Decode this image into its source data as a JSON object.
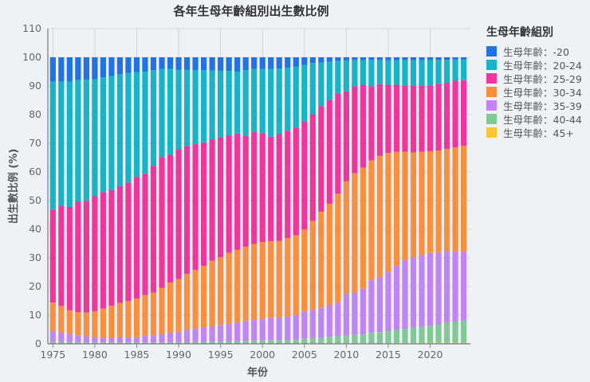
{
  "chart_data": {
    "type": "bar",
    "stacked": true,
    "title": "各年生母年齡組別出生數比例",
    "xlabel": "年份",
    "ylabel": "出生數比例 (%)",
    "ylim": [
      0,
      110
    ],
    "yticks": [
      0,
      10,
      20,
      30,
      40,
      50,
      60,
      70,
      80,
      90,
      100,
      110
    ],
    "xticks": [
      1975,
      1980,
      1985,
      1990,
      1995,
      2000,
      2005,
      2010,
      2015,
      2020
    ],
    "grid": true,
    "legend_title": "生母年齡組別",
    "legend_position": "right",
    "categories": [
      1975,
      1976,
      1977,
      1978,
      1979,
      1980,
      1981,
      1982,
      1983,
      1984,
      1985,
      1986,
      1987,
      1988,
      1989,
      1990,
      1991,
      1992,
      1993,
      1994,
      1995,
      1996,
      1997,
      1998,
      1999,
      2000,
      2001,
      2002,
      2003,
      2004,
      2005,
      2006,
      2007,
      2008,
      2009,
      2010,
      2011,
      2012,
      2013,
      2014,
      2015,
      2016,
      2017,
      2018,
      2019,
      2020,
      2021,
      2022,
      2023,
      2024
    ],
    "series": [
      {
        "name": "生母年齡：45+",
        "color": "#fcc534",
        "values": [
          0.1,
          0.1,
          0.1,
          0.1,
          0.1,
          0.1,
          0.1,
          0.1,
          0.1,
          0.1,
          0.1,
          0.1,
          0.1,
          0.1,
          0.1,
          0.1,
          0.1,
          0.1,
          0.1,
          0.1,
          0.1,
          0.1,
          0.1,
          0.1,
          0.1,
          0.1,
          0.1,
          0.1,
          0.1,
          0.1,
          0.1,
          0.2,
          0.2,
          0.2,
          0.2,
          0.2,
          0.2,
          0.2,
          0.2,
          0.2,
          0.3,
          0.3,
          0.3,
          0.3,
          0.3,
          0.4,
          0.4,
          0.4,
          0.4,
          0.4
        ]
      },
      {
        "name": "生母年齡：40-44",
        "color": "#80c994",
        "values": [
          0.7,
          0.6,
          0.5,
          0.5,
          0.4,
          0.4,
          0.4,
          0.4,
          0.4,
          0.4,
          0.4,
          0.4,
          0.4,
          0.4,
          0.5,
          0.5,
          0.5,
          0.6,
          0.6,
          0.7,
          0.7,
          0.8,
          0.8,
          0.9,
          1.0,
          1.1,
          1.1,
          1.1,
          1.2,
          1.4,
          1.6,
          1.8,
          1.9,
          2.2,
          2.4,
          2.7,
          2.9,
          3.1,
          3.6,
          3.9,
          4.1,
          4.6,
          4.9,
          5.4,
          5.6,
          5.9,
          6.4,
          7.1,
          7.4,
          7.6
        ]
      },
      {
        "name": "生母年齡：35-39",
        "color": "#c184f7",
        "values": [
          3.6,
          3.2,
          2.9,
          2.4,
          2.1,
          1.8,
          1.6,
          1.6,
          1.8,
          1.8,
          1.8,
          2.4,
          2.5,
          2.8,
          3.3,
          3.5,
          4.3,
          4.5,
          5.0,
          5.3,
          5.8,
          6.1,
          6.6,
          7.0,
          7.2,
          7.5,
          7.9,
          7.9,
          8.3,
          8.6,
          9.5,
          9.9,
          10.5,
          11.1,
          11.8,
          14.5,
          14.8,
          15.9,
          18.4,
          19.1,
          20.6,
          22.4,
          24.0,
          24.4,
          25.1,
          25.4,
          25.0,
          24.9,
          24.4,
          24.2
        ]
      },
      {
        "name": "生母年齡：30-34",
        "color": "#fb8f3d",
        "values": [
          10.0,
          9.3,
          8.2,
          8.0,
          8.3,
          9.1,
          10.2,
          11.2,
          12.0,
          12.6,
          13.5,
          14.1,
          14.9,
          16.2,
          17.5,
          18.5,
          19.5,
          20.6,
          21.5,
          22.9,
          23.6,
          24.8,
          25.3,
          25.9,
          26.5,
          26.8,
          26.7,
          26.8,
          27.3,
          27.8,
          28.7,
          31.0,
          33.5,
          35.4,
          38.0,
          39.3,
          41.6,
          42.3,
          41.8,
          42.4,
          41.6,
          39.7,
          37.8,
          36.7,
          36.0,
          35.5,
          35.7,
          35.6,
          36.4,
          36.9
        ]
      },
      {
        "name": "生母年齡：25-29",
        "color": "#f2359c",
        "values": [
          32.3,
          35.0,
          36.1,
          38.6,
          39.0,
          40.1,
          40.6,
          40.3,
          40.7,
          41.4,
          42.4,
          42.4,
          44.2,
          45.7,
          44.6,
          45.3,
          44.7,
          43.9,
          43.0,
          42.4,
          41.9,
          41.0,
          40.6,
          38.7,
          39.2,
          38.0,
          36.5,
          37.3,
          37.5,
          37.6,
          37.7,
          37.1,
          36.9,
          36.2,
          35.0,
          31.4,
          30.4,
          28.9,
          25.9,
          25.0,
          23.8,
          23.4,
          23.1,
          23.3,
          23.1,
          22.9,
          23.3,
          23.1,
          23.2,
          22.9
        ]
      },
      {
        "name": "生母年齡：20-24",
        "color": "#17b3c9",
        "values": [
          44.8,
          43.3,
          43.7,
          42.4,
          42.3,
          40.8,
          40.1,
          39.9,
          39.1,
          38.2,
          36.6,
          35.6,
          33.4,
          30.7,
          29.9,
          27.8,
          26.6,
          25.8,
          25.3,
          24.0,
          23.2,
          22.4,
          21.6,
          22.9,
          21.9,
          22.4,
          23.6,
          22.9,
          22.0,
          21.2,
          19.7,
          18.0,
          15.2,
          13.4,
          11.3,
          10.8,
          9.1,
          8.6,
          9.2,
          8.4,
          8.6,
          8.6,
          8.9,
          8.9,
          8.9,
          8.9,
          8.2,
          8.0,
          7.4,
          7.2
        ]
      },
      {
        "name": "生母年齡：-20",
        "color": "#2271e6",
        "values": [
          8.5,
          8.5,
          8.5,
          8.0,
          7.8,
          7.7,
          7.0,
          6.5,
          5.9,
          5.5,
          5.2,
          5.0,
          4.5,
          4.1,
          4.1,
          4.3,
          4.3,
          4.5,
          4.5,
          4.6,
          4.7,
          4.8,
          5.0,
          4.5,
          4.1,
          4.1,
          4.1,
          3.9,
          3.6,
          3.3,
          2.7,
          2.0,
          1.8,
          1.5,
          1.3,
          1.1,
          1.0,
          1.0,
          0.9,
          1.0,
          1.0,
          1.0,
          1.0,
          1.0,
          1.0,
          1.0,
          1.0,
          0.9,
          0.8,
          0.8
        ]
      }
    ]
  }
}
